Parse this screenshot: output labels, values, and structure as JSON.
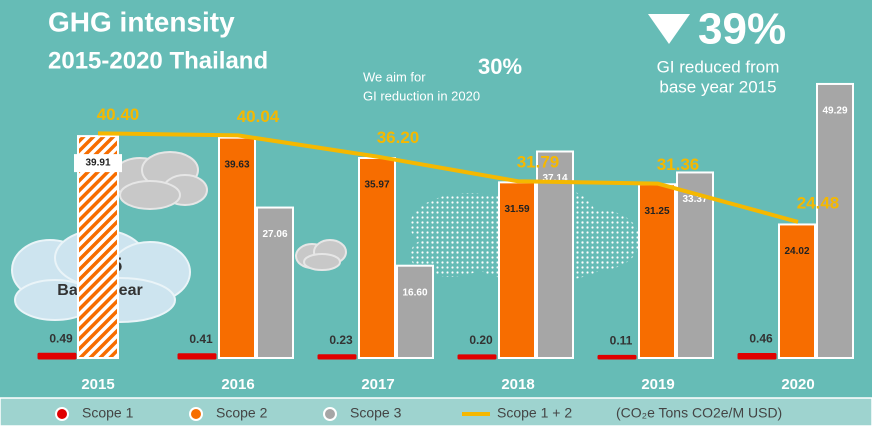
{
  "chart_data": {
    "type": "bar",
    "title": "GHG intensity",
    "subtitle": "2015-2020 Thailand",
    "target_text": [
      "We aim for",
      "GI reduction in 2020"
    ],
    "target_value": "30%",
    "reduction_value": "39%",
    "reduction_text": [
      "GI reduced from",
      "base year 2015"
    ],
    "cloud_label": [
      "2015",
      "Based year"
    ],
    "unit": "(CO₂e Tons CO2e/M USD)",
    "categories": [
      "2015",
      "2016",
      "2017",
      "2018",
      "2019",
      "2020"
    ],
    "ylim": [
      0,
      50
    ],
    "series": [
      {
        "name": "Scope 1",
        "color": "#e00000",
        "values": [
          0.49,
          0.41,
          0.23,
          0.2,
          0.11,
          0.46
        ],
        "value_labels": [
          "0.49",
          "0.41",
          "0.23",
          "0.20",
          "0.11",
          "0.46"
        ]
      },
      {
        "name": "Scope 2",
        "color": "#f76d00",
        "values": [
          39.91,
          39.63,
          35.97,
          31.59,
          31.25,
          24.02
        ],
        "value_labels": [
          "39.91",
          "39.63",
          "35.97",
          "31.59",
          "31.25",
          "24.02"
        ],
        "hatched": [
          true,
          false,
          false,
          false,
          false,
          false
        ]
      },
      {
        "name": "Scope 3",
        "color": "#a6a6a6",
        "values": [
          null,
          27.06,
          16.6,
          37.14,
          33.37,
          49.29
        ],
        "value_labels": [
          null,
          "27.06",
          "16.60",
          "37.14",
          "33.37",
          "49.29"
        ]
      },
      {
        "name": "Scope 1 + 2",
        "color": "#f5b800",
        "mark": "line",
        "values": [
          40.4,
          40.04,
          36.2,
          31.79,
          31.36,
          24.48
        ],
        "value_labels": [
          "40.40",
          "40.04",
          "36.20",
          "31.79",
          "31.36",
          "24.48"
        ]
      }
    ]
  }
}
